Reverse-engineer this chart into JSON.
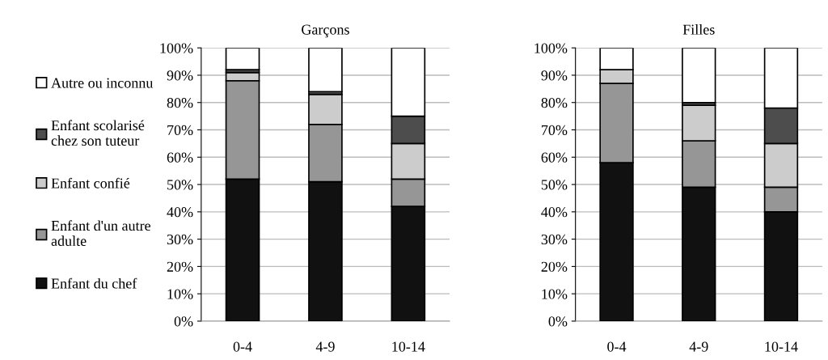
{
  "chart_data": [
    {
      "type": "bar",
      "stacked": true,
      "title": "Garçons",
      "categories": [
        "0-4",
        "4-9",
        "10-14"
      ],
      "ylim": [
        0,
        100
      ],
      "yticks": [
        {
          "value": 0,
          "label": "0%"
        },
        {
          "value": 10,
          "label": "10%"
        },
        {
          "value": 20,
          "label": "20%"
        },
        {
          "value": 30,
          "label": "30%"
        },
        {
          "value": 40,
          "label": "40%"
        },
        {
          "value": 50,
          "label": "50%"
        },
        {
          "value": 60,
          "label": "60%"
        },
        {
          "value": 70,
          "label": "70%"
        },
        {
          "value": 80,
          "label": "80%"
        },
        {
          "value": 90,
          "label": "90%"
        },
        {
          "value": 100,
          "label": "100%"
        }
      ],
      "grid": "y",
      "legend": "left",
      "series": [
        {
          "name": "Enfant du chef",
          "color": "#111111",
          "values": [
            52,
            51,
            42
          ]
        },
        {
          "name": "Enfant d'un autre\nadulte",
          "color": "#969696",
          "values": [
            36,
            21,
            10
          ]
        },
        {
          "name": "Enfant confié",
          "color": "#cccccc",
          "values": [
            3,
            11,
            13
          ]
        },
        {
          "name": "Enfant scolarisé\nchez son tuteur",
          "color": "#4d4d4d",
          "values": [
            1,
            1,
            10
          ]
        },
        {
          "name": "Autre ou inconnu",
          "color": "#ffffff",
          "values": [
            8,
            16,
            25
          ]
        }
      ]
    },
    {
      "type": "bar",
      "stacked": true,
      "title": "Filles",
      "categories": [
        "0-4",
        "4-9",
        "10-14"
      ],
      "ylim": [
        0,
        100
      ],
      "yticks": [
        {
          "value": 0,
          "label": "0%"
        },
        {
          "value": 10,
          "label": "10%"
        },
        {
          "value": 20,
          "label": "20%"
        },
        {
          "value": 30,
          "label": "30%"
        },
        {
          "value": 40,
          "label": "40%"
        },
        {
          "value": 50,
          "label": "50%"
        },
        {
          "value": 60,
          "label": "60%"
        },
        {
          "value": 70,
          "label": "70%"
        },
        {
          "value": 80,
          "label": "80%"
        },
        {
          "value": 90,
          "label": "90%"
        },
        {
          "value": 100,
          "label": "100%"
        }
      ],
      "grid": "y",
      "series": [
        {
          "color": "#111111",
          "values": [
            58,
            49,
            40
          ]
        },
        {
          "color": "#969696",
          "values": [
            29,
            17,
            9
          ]
        },
        {
          "color": "#cccccc",
          "values": [
            5,
            13,
            16
          ]
        },
        {
          "color": "#4d4d4d",
          "values": [
            0,
            1,
            13
          ]
        },
        {
          "color": "#ffffff",
          "values": [
            8,
            20,
            22
          ]
        }
      ]
    }
  ]
}
